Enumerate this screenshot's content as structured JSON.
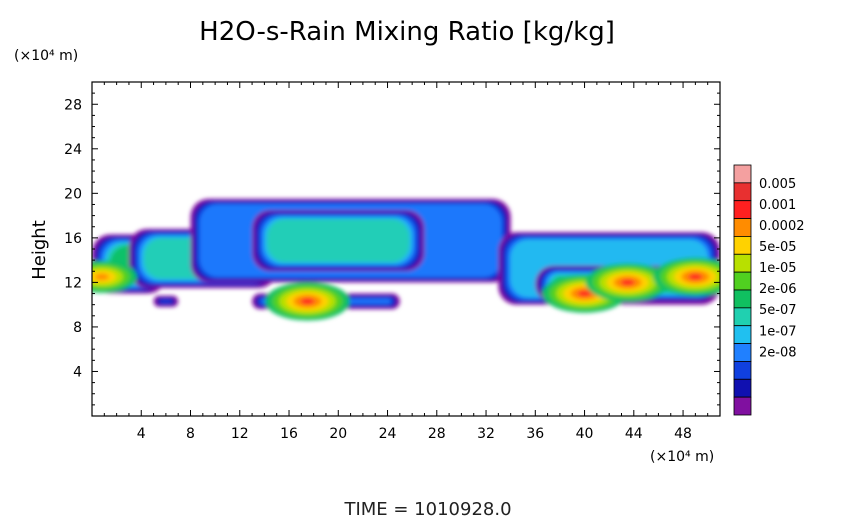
{
  "chart_data": {
    "type": "heatmap",
    "title": "H2O-s-Rain Mixing Ratio [kg/kg]",
    "ylabel": "Height",
    "x_unit_label": "(×10⁴ m)",
    "y_unit_label": "(×10⁴ m)",
    "footer": "TIME = 1010928.0",
    "xlim": [
      0,
      51
    ],
    "ylim": [
      0,
      30
    ],
    "x_ticks": [
      4,
      8,
      12,
      16,
      20,
      24,
      28,
      32,
      36,
      40,
      44,
      48
    ],
    "y_ticks": [
      4,
      8,
      12,
      16,
      20,
      24,
      28
    ],
    "legend": {
      "labels": [
        "0.005",
        "0.001",
        "0.0002",
        "5e-05",
        "1e-05",
        "2e-06",
        "5e-07",
        "1e-07",
        "2e-08"
      ],
      "colors": [
        "#f4a0a0",
        "#e83030",
        "#ff2020",
        "#ff8c00",
        "#ffd200",
        "#b8e000",
        "#50d020",
        "#10c060",
        "#20d0b0",
        "#20c0f0",
        "#2080ff",
        "#1040e0",
        "#1010b0",
        "#8010a0"
      ]
    },
    "field": {
      "description_levels": "level index 0 (2e-08, purple) to 13 (0.005, pink)",
      "bands": [
        {
          "x": [
            0,
            6
          ],
          "y": [
            11,
            16.3
          ],
          "level": 6
        },
        {
          "x": [
            3,
            15
          ],
          "y": [
            11.5,
            16.8
          ],
          "level": 5
        },
        {
          "x": [
            8,
            34
          ],
          "y": [
            12,
            19.5
          ],
          "level": 3
        },
        {
          "x": [
            13,
            27
          ],
          "y": [
            13,
            18.5
          ],
          "level": 5
        },
        {
          "x": [
            33,
            51
          ],
          "y": [
            10,
            16.5
          ],
          "level": 4
        },
        {
          "x": [
            36,
            51
          ],
          "y": [
            10.2,
            13.5
          ],
          "level": 8
        },
        {
          "x": [
            13,
            25
          ],
          "y": [
            9.6,
            11
          ],
          "level": 7
        },
        {
          "x": [
            5,
            7
          ],
          "y": [
            9.8,
            10.8
          ],
          "level": 6
        }
      ],
      "cores": [
        {
          "x": 0.8,
          "y": 12.5,
          "level": 10
        },
        {
          "x": 17.5,
          "y": 10.3,
          "level": 11
        },
        {
          "x": 40,
          "y": 11,
          "level": 11
        },
        {
          "x": 43.5,
          "y": 12,
          "level": 11
        },
        {
          "x": 49,
          "y": 12.5,
          "level": 11
        }
      ]
    }
  }
}
